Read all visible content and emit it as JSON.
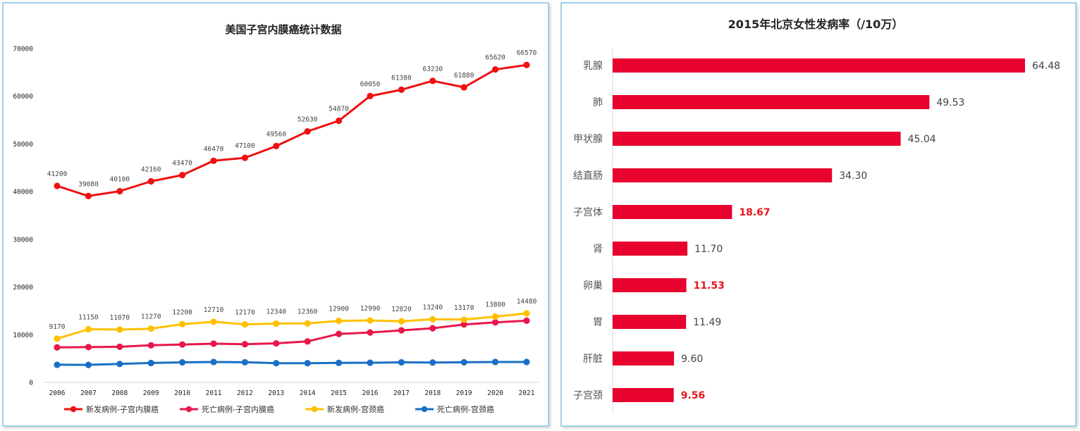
{
  "chart_data": [
    {
      "type": "line",
      "title": "美国子宫内膜癌统计数据",
      "categories": [
        "2006",
        "2007",
        "2008",
        "2009",
        "2010",
        "2011",
        "2012",
        "2013",
        "2014",
        "2015",
        "2016",
        "2017",
        "2018",
        "2019",
        "2020",
        "2021"
      ],
      "ylim": [
        0,
        70000
      ],
      "yticks": [
        "0",
        "10000",
        "20000",
        "30000",
        "40000",
        "50000",
        "60000",
        "70000"
      ],
      "legend_position": "bottom",
      "grid": false,
      "series": [
        {
          "name": "新发病例-子宫内膜癌",
          "color": "#ee1111",
          "values": [
            41200,
            39080,
            40100,
            42160,
            43470,
            46470,
            47100,
            49560,
            52630,
            54870,
            60050,
            61380,
            63230,
            61880,
            65620,
            66570
          ],
          "labels": [
            "41200",
            "39080",
            "40100",
            "42160",
            "43470",
            "46470",
            "47100",
            "49560",
            "52630",
            "54870",
            "60050",
            "61380",
            "63230",
            "61880",
            "65620",
            "66570"
          ]
        },
        {
          "name": "死亡病例-子宫内膜癌",
          "color": "#e8174a",
          "values": [
            7350,
            7400,
            7470,
            7780,
            7950,
            8120,
            8010,
            8190,
            8590,
            10170,
            10470,
            10920,
            11350,
            12160,
            12590,
            12940
          ],
          "labels": []
        },
        {
          "name": "新发病例-宫颈癌",
          "color": "#ffc000",
          "values": [
            9170,
            11150,
            11070,
            11270,
            12200,
            12710,
            12170,
            12340,
            12360,
            12900,
            12990,
            12820,
            13240,
            13170,
            13800,
            14480
          ],
          "labels": [
            "9170",
            "11150",
            "11070",
            "11270",
            "12200",
            "12710",
            "12170",
            "12340",
            "12360",
            "12900",
            "12990",
            "12820",
            "13240",
            "13170",
            "13800",
            "14480"
          ]
        },
        {
          "name": "死亡病例-宫颈癌",
          "color": "#1a6fc4",
          "values": [
            3700,
            3670,
            3870,
            4070,
            4210,
            4290,
            4220,
            4030,
            4020,
            4100,
            4120,
            4210,
            4170,
            4230,
            4290,
            4290
          ],
          "labels": []
        }
      ]
    },
    {
      "type": "bar",
      "orientation": "horizontal",
      "title": "2015年北京女性发病率（/10万）",
      "categories": [
        "乳腺",
        "肺",
        "甲状腺",
        "结直肠",
        "子宫体",
        "肾",
        "卵巢",
        "胃",
        "肝脏",
        "子宫颈"
      ],
      "values": [
        64.48,
        49.53,
        45.04,
        34.3,
        18.67,
        11.7,
        11.53,
        11.49,
        9.6,
        9.56
      ],
      "labels": [
        "64.48",
        "49.53",
        "45.04",
        "34.30",
        "18.67",
        "11.70",
        "11.53",
        "11.49",
        "9.60",
        "9.56"
      ],
      "highlighted": [
        false,
        false,
        false,
        false,
        true,
        false,
        true,
        false,
        false,
        true
      ],
      "bar_color": "#e8032e",
      "highlight_color": "#e8141e",
      "xlim": [
        0,
        64.48
      ]
    }
  ]
}
